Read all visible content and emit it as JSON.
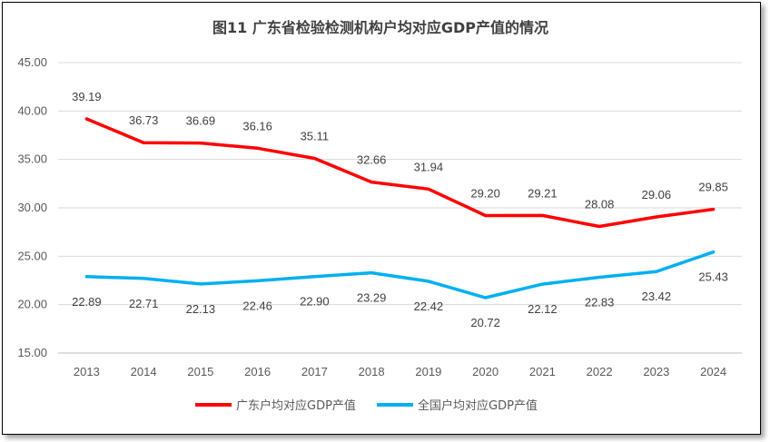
{
  "chart_data": {
    "type": "line",
    "title": "图11 广东省检验检测机构户均对应GDP产值的情况",
    "xlabel": "",
    "ylabel": "",
    "categories": [
      "2013",
      "2014",
      "2015",
      "2016",
      "2017",
      "2018",
      "2019",
      "2020",
      "2021",
      "2022",
      "2023",
      "2024"
    ],
    "ylim": [
      15,
      45
    ],
    "yticks": [
      "15.00",
      "20.00",
      "25.00",
      "30.00",
      "35.00",
      "40.00",
      "45.00"
    ],
    "grid": true,
    "legend_position": "bottom",
    "series": [
      {
        "name": "广东户均对应GDP产值",
        "color": "#ff0000",
        "values": [
          39.19,
          36.73,
          36.69,
          36.16,
          35.11,
          32.66,
          31.94,
          29.2,
          29.21,
          28.08,
          29.06,
          29.85
        ],
        "labels": [
          "39.19",
          "36.73",
          "36.69",
          "36.16",
          "35.11",
          "32.66",
          "31.94",
          "29.20",
          "29.21",
          "28.08",
          "29.06",
          "29.85"
        ],
        "label_position": "above"
      },
      {
        "name": "全国户均对应GDP产值",
        "color": "#00b0f0",
        "values": [
          22.89,
          22.71,
          22.13,
          22.46,
          22.9,
          23.29,
          22.42,
          20.72,
          22.12,
          22.83,
          23.42,
          25.43
        ],
        "labels": [
          "22.89",
          "22.71",
          "22.13",
          "22.46",
          "22.90",
          "23.29",
          "22.42",
          "20.72",
          "22.12",
          "22.83",
          "23.42",
          "25.43"
        ],
        "label_position": "below"
      }
    ]
  }
}
